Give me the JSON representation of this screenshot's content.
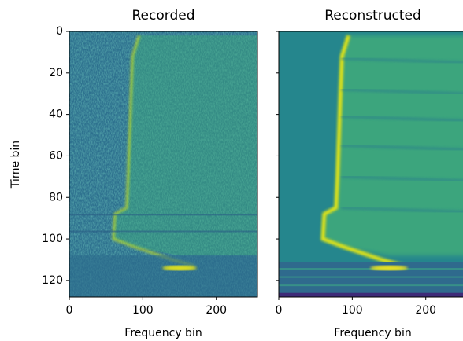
{
  "chart_data": [
    {
      "type": "image",
      "title": "Recorded",
      "xlabel": "Frequency bin",
      "ylabel": "Time bin",
      "xlim": [
        0,
        256
      ],
      "ylim": [
        128,
        0
      ],
      "xticks": [
        0,
        100,
        200
      ],
      "yticks": [
        0,
        20,
        40,
        60,
        80,
        100,
        120
      ],
      "ytick_labels": true,
      "style": "noisy"
    },
    {
      "type": "image",
      "title": "Reconstructed",
      "xlabel": "Frequency bin",
      "xlim": [
        0,
        256
      ],
      "ylim": [
        128,
        0
      ],
      "xticks": [
        0,
        100,
        200
      ],
      "yticks": [
        0,
        20,
        40,
        60,
        80,
        100,
        120
      ],
      "ytick_labels": false,
      "style": "smooth"
    }
  ]
}
